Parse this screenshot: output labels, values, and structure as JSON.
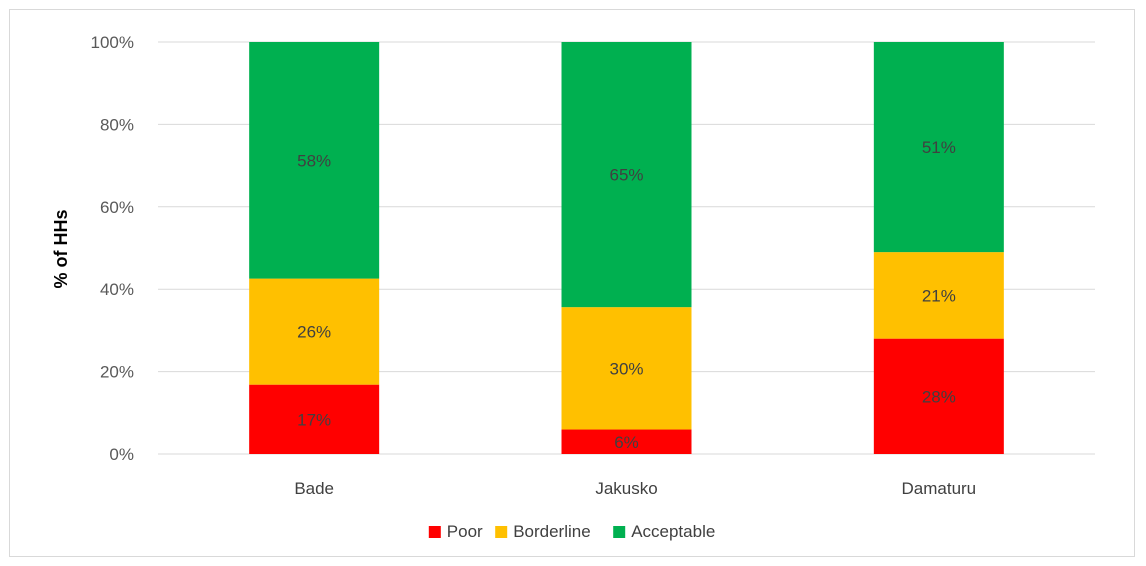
{
  "chart_data": {
    "type": "bar",
    "stacked": true,
    "percent_stacked": true,
    "categories": [
      "Bade",
      "Jakusko",
      "Damaturu"
    ],
    "series": [
      {
        "name": "Poor",
        "values": [
          17,
          6,
          28
        ],
        "labels": [
          "17%",
          "6%",
          "28%"
        ]
      },
      {
        "name": "Borderline",
        "values": [
          26,
          30,
          21
        ],
        "labels": [
          "26%",
          "30%",
          "21%"
        ]
      },
      {
        "name": "Acceptable",
        "values": [
          58,
          65,
          51
        ],
        "labels": [
          "58%",
          "65%",
          "51%"
        ]
      }
    ],
    "ylabel": "% of HHs",
    "xlabel": "",
    "ylim": [
      0,
      100
    ],
    "y_ticks": [
      "0%",
      "20%",
      "40%",
      "60%",
      "80%",
      "100%"
    ],
    "grid": true,
    "legend_position": "bottom",
    "colors": {
      "Poor": "#ff0000",
      "Borderline": "#ffc000",
      "Acceptable": "#00b050",
      "grid": "#d9d9d9"
    }
  }
}
